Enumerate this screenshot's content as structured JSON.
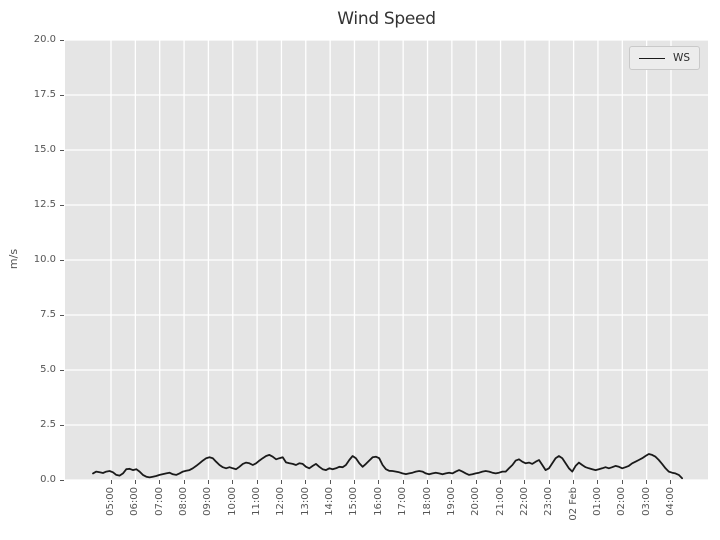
{
  "chart_data": {
    "type": "line",
    "title": "Wind Speed",
    "xlabel": "",
    "ylabel": "m/s",
    "legend": [
      "WS"
    ],
    "legend_location": "upper right",
    "grid": true,
    "ylim": [
      0,
      20
    ],
    "xlim_hours": [
      3.11,
      29.52
    ],
    "yticks": [
      {
        "v": 0,
        "label": "0.0"
      },
      {
        "v": 2.5,
        "label": "2.5"
      },
      {
        "v": 5,
        "label": "5.0"
      },
      {
        "v": 7.5,
        "label": "7.5"
      },
      {
        "v": 10,
        "label": "10.0"
      },
      {
        "v": 12.5,
        "label": "12.5"
      },
      {
        "v": 15,
        "label": "15.0"
      },
      {
        "v": 17.5,
        "label": "17.5"
      },
      {
        "v": 20,
        "label": "20.0"
      }
    ],
    "xticks": [
      {
        "t": 5,
        "label": "05:00"
      },
      {
        "t": 6,
        "label": "06:00"
      },
      {
        "t": 7,
        "label": "07:00"
      },
      {
        "t": 8,
        "label": "08:00"
      },
      {
        "t": 9,
        "label": "09:00"
      },
      {
        "t": 10,
        "label": "10:00"
      },
      {
        "t": 11,
        "label": "11:00"
      },
      {
        "t": 12,
        "label": "12:00"
      },
      {
        "t": 13,
        "label": "13:00"
      },
      {
        "t": 14,
        "label": "14:00"
      },
      {
        "t": 15,
        "label": "15:00"
      },
      {
        "t": 16,
        "label": "16:00"
      },
      {
        "t": 17,
        "label": "17:00"
      },
      {
        "t": 18,
        "label": "18:00"
      },
      {
        "t": 19,
        "label": "19:00"
      },
      {
        "t": 20,
        "label": "20:00"
      },
      {
        "t": 21,
        "label": "21:00"
      },
      {
        "t": 22,
        "label": "22:00"
      },
      {
        "t": 23,
        "label": "23:00"
      },
      {
        "t": 24,
        "label": "02 Feb"
      },
      {
        "t": 25,
        "label": "01:00"
      },
      {
        "t": 26,
        "label": "02:00"
      },
      {
        "t": 27,
        "label": "03:00"
      },
      {
        "t": 28,
        "label": "04:00"
      }
    ],
    "series": [
      {
        "name": "WS",
        "unit": "m/s",
        "color": "#1a1a1a",
        "t_start_hours": 4.26,
        "t_step_hours": 0.1367,
        "values": [
          0.3,
          0.38,
          0.35,
          0.32,
          0.38,
          0.41,
          0.35,
          0.23,
          0.2,
          0.3,
          0.49,
          0.51,
          0.45,
          0.49,
          0.38,
          0.23,
          0.15,
          0.12,
          0.15,
          0.18,
          0.23,
          0.27,
          0.3,
          0.33,
          0.26,
          0.23,
          0.3,
          0.38,
          0.42,
          0.45,
          0.53,
          0.64,
          0.76,
          0.88,
          0.99,
          1.03,
          0.99,
          0.83,
          0.68,
          0.58,
          0.53,
          0.58,
          0.53,
          0.49,
          0.6,
          0.73,
          0.79,
          0.76,
          0.68,
          0.76,
          0.88,
          0.99,
          1.09,
          1.14,
          1.06,
          0.94,
          0.99,
          1.03,
          0.8,
          0.76,
          0.73,
          0.68,
          0.76,
          0.73,
          0.6,
          0.53,
          0.64,
          0.73,
          0.6,
          0.49,
          0.45,
          0.53,
          0.49,
          0.53,
          0.6,
          0.58,
          0.68,
          0.91,
          1.09,
          0.99,
          0.76,
          0.6,
          0.73,
          0.88,
          1.03,
          1.06,
          0.99,
          0.68,
          0.49,
          0.42,
          0.41,
          0.38,
          0.35,
          0.3,
          0.27,
          0.3,
          0.33,
          0.38,
          0.41,
          0.38,
          0.3,
          0.26,
          0.3,
          0.33,
          0.3,
          0.26,
          0.3,
          0.33,
          0.3,
          0.38,
          0.45,
          0.38,
          0.3,
          0.23,
          0.26,
          0.3,
          0.33,
          0.38,
          0.41,
          0.38,
          0.33,
          0.3,
          0.33,
          0.38,
          0.38,
          0.53,
          0.68,
          0.88,
          0.94,
          0.83,
          0.76,
          0.79,
          0.73,
          0.83,
          0.91,
          0.68,
          0.45,
          0.53,
          0.76,
          0.99,
          1.09,
          0.99,
          0.76,
          0.53,
          0.38,
          0.64,
          0.79,
          0.68,
          0.58,
          0.53,
          0.49,
          0.45,
          0.49,
          0.53,
          0.58,
          0.53,
          0.58,
          0.64,
          0.6,
          0.53,
          0.58,
          0.64,
          0.76,
          0.83,
          0.91,
          0.99,
          1.09,
          1.18,
          1.14,
          1.06,
          0.91,
          0.73,
          0.53,
          0.38,
          0.33,
          0.3,
          0.23,
          0.08
        ]
      }
    ],
    "style": {
      "figure_bg": "#ffffff",
      "plot_bg": "#e5e5e5",
      "grid_color": "#ffffff",
      "tick_color": "#555555",
      "title_color": "#333333",
      "axis_label_color": "#555555",
      "legend_bg": "#ececec",
      "legend_border": "#c9c9c9"
    }
  }
}
